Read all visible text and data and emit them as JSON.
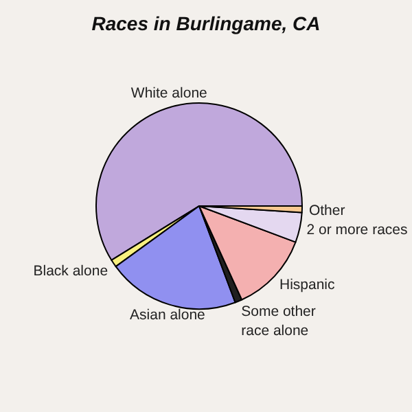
{
  "chart_data": {
    "type": "pie",
    "title": "Races in Burlingame, CA",
    "categories": [
      "White alone",
      "Black alone",
      "Asian alone",
      "Some other race alone",
      "Hispanic",
      "2 or more races",
      "Other"
    ],
    "values": [
      58.8,
      1.2,
      20.7,
      1.1,
      12.5,
      4.7,
      1.0
    ],
    "colors": [
      "#c0a8dc",
      "#f8f080",
      "#9090f0",
      "#202020",
      "#f4b0b0",
      "#e4d8f0",
      "#f8c890"
    ]
  }
}
